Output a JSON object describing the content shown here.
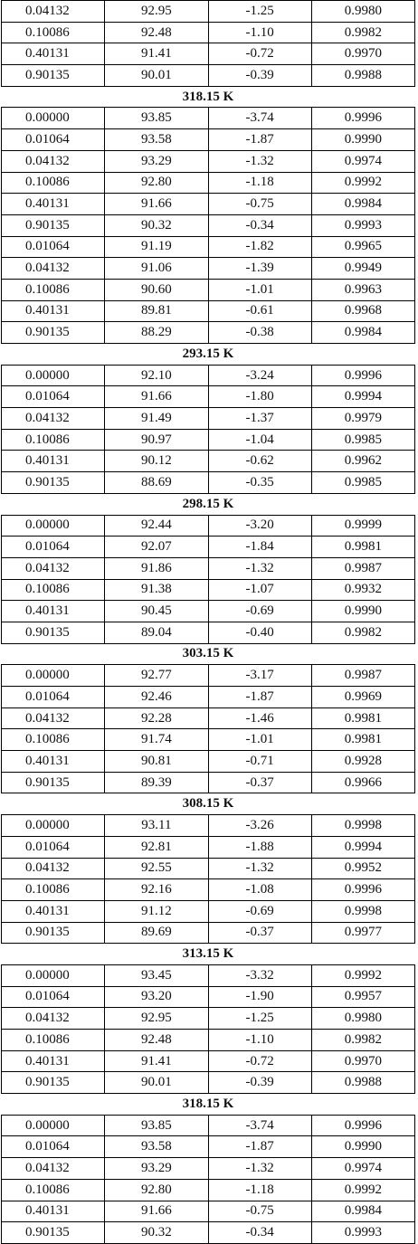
{
  "table": {
    "rows": [
      [
        "0.04132",
        "92.95",
        "-1.25",
        "0.9980"
      ],
      [
        "0.10086",
        "92.48",
        "-1.10",
        "0.9982"
      ],
      [
        "0.40131",
        "91.41",
        "-0.72",
        "0.9970"
      ],
      [
        "0.90135",
        "90.01",
        "-0.39",
        "0.9988"
      ],
      "318.15 K",
      [
        "0.00000",
        "93.85",
        "-3.74",
        "0.9996"
      ],
      [
        "0.01064",
        "93.58",
        "-1.87",
        "0.9990"
      ],
      [
        "0.04132",
        "93.29",
        "-1.32",
        "0.9974"
      ],
      [
        "0.10086",
        "92.80",
        "-1.18",
        "0.9992"
      ],
      [
        "0.40131",
        "91.66",
        "-0.75",
        "0.9984"
      ],
      [
        "0.90135",
        "90.32",
        "-0.34",
        "0.9993"
      ],
      [
        "0.01064",
        "91.19",
        "-1.82",
        "0.9965"
      ],
      [
        "0.04132",
        "91.06",
        "-1.39",
        "0.9949"
      ],
      [
        "0.10086",
        "90.60",
        "-1.01",
        "0.9963"
      ],
      [
        "0.40131",
        "89.81",
        "-0.61",
        "0.9968"
      ],
      [
        "0.90135",
        "88.29",
        "-0.38",
        "0.9984"
      ],
      "293.15 K",
      [
        "0.00000",
        "92.10",
        "-3.24",
        "0.9996"
      ],
      [
        "0.01064",
        "91.66",
        "-1.80",
        "0.9994"
      ],
      [
        "0.04132",
        "91.49",
        "-1.37",
        "0.9979"
      ],
      [
        "0.10086",
        "90.97",
        "-1.04",
        "0.9985"
      ],
      [
        "0.40131",
        "90.12",
        "-0.62",
        "0.9962"
      ],
      [
        "0.90135",
        "88.69",
        "-0.35",
        "0.9985"
      ],
      "298.15 K",
      [
        "0.00000",
        "92.44",
        "-3.20",
        "0.9999"
      ],
      [
        "0.01064",
        "92.07",
        "-1.84",
        "0.9981"
      ],
      [
        "0.04132",
        "91.86",
        "-1.32",
        "0.9987"
      ],
      [
        "0.10086",
        "91.38",
        "-1.07",
        "0.9932"
      ],
      [
        "0.40131",
        "90.45",
        "-0.69",
        "0.9990"
      ],
      [
        "0.90135",
        "89.04",
        "-0.40",
        "0.9982"
      ],
      "303.15 K",
      [
        "0.00000",
        "92.77",
        "-3.17",
        "0.9987"
      ],
      [
        "0.01064",
        "92.46",
        "-1.87",
        "0.9969"
      ],
      [
        "0.04132",
        "92.28",
        "-1.46",
        "0.9981"
      ],
      [
        "0.10086",
        "91.74",
        "-1.01",
        "0.9981"
      ],
      [
        "0.40131",
        "90.81",
        "-0.71",
        "0.9928"
      ],
      [
        "0.90135",
        "89.39",
        "-0.37",
        "0.9966"
      ],
      "308.15 K",
      [
        "0.00000",
        "93.11",
        "-3.26",
        "0.9998"
      ],
      [
        "0.01064",
        "92.81",
        "-1.88",
        "0.9994"
      ],
      [
        "0.04132",
        "92.55",
        "-1.32",
        "0.9952"
      ],
      [
        "0.10086",
        "92.16",
        "-1.08",
        "0.9996"
      ],
      [
        "0.40131",
        "91.12",
        "-0.69",
        "0.9998"
      ],
      [
        "0.90135",
        "89.69",
        "-0.37",
        "0.9977"
      ],
      "313.15 K",
      [
        "0.00000",
        "93.45",
        "-3.32",
        "0.9992"
      ],
      [
        "0.01064",
        "93.20",
        "-1.90",
        "0.9957"
      ],
      [
        "0.04132",
        "92.95",
        "-1.25",
        "0.9980"
      ],
      [
        "0.10086",
        "92.48",
        "-1.10",
        "0.9982"
      ],
      [
        "0.40131",
        "91.41",
        "-0.72",
        "0.9970"
      ],
      [
        "0.90135",
        "90.01",
        "-0.39",
        "0.9988"
      ],
      "318.15 K",
      [
        "0.00000",
        "93.85",
        "-3.74",
        "0.9996"
      ],
      [
        "0.01064",
        "93.58",
        "-1.87",
        "0.9990"
      ],
      [
        "0.04132",
        "93.29",
        "-1.32",
        "0.9974"
      ],
      [
        "0.10086",
        "92.80",
        "-1.18",
        "0.9992"
      ],
      [
        "0.40131",
        "91.66",
        "-0.75",
        "0.9984"
      ],
      [
        "0.90135",
        "90.32",
        "-0.34",
        "0.9993"
      ]
    ]
  }
}
